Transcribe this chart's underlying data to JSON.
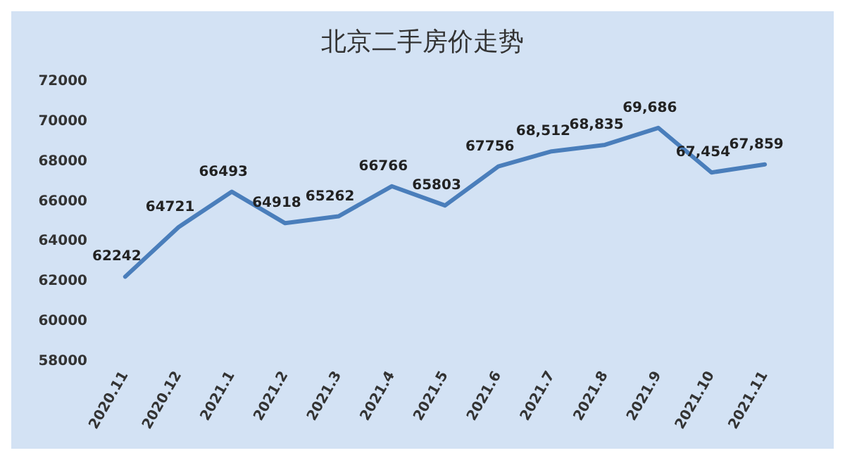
{
  "chart_data": {
    "type": "line",
    "title": "北京二手房价走势",
    "categories": [
      "2020.11",
      "2020.12",
      "2021.1",
      "2021.2",
      "2021.3",
      "2021.4",
      "2021.5",
      "2021.6",
      "2021.7",
      "2021.8",
      "2021.9",
      "2021.10",
      "2021.11"
    ],
    "values": [
      62242,
      64721,
      66493,
      64918,
      65262,
      66766,
      65803,
      67756,
      68512,
      68835,
      69686,
      67454,
      67859
    ],
    "value_labels": [
      "62242",
      "64721",
      "66493",
      "64918",
      "65262",
      "66766",
      "65803",
      "67756",
      "68,512",
      "68,835",
      "69,686",
      "67,454",
      "67,859"
    ],
    "color": "#4a7ebb",
    "ylim": [
      58000,
      72000
    ],
    "yticks": [
      58000,
      60000,
      62000,
      64000,
      66000,
      68000,
      70000,
      72000
    ],
    "grid": false,
    "marker": "none",
    "line_style": "solid"
  }
}
